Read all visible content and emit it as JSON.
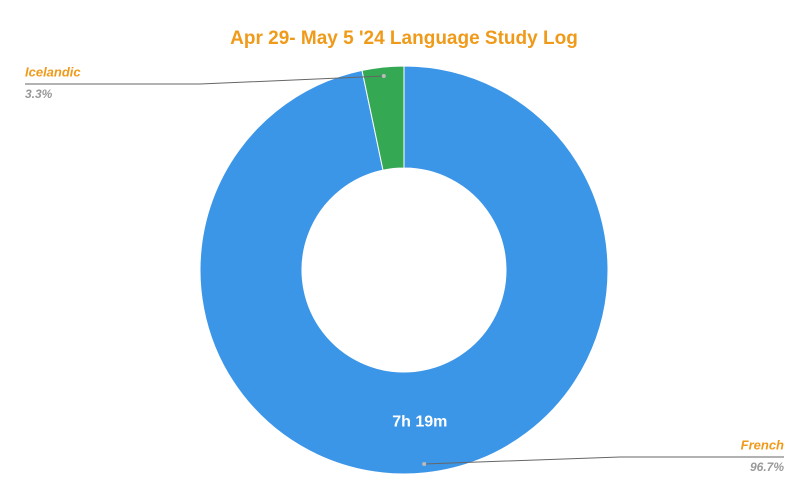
{
  "chart_data": {
    "type": "donut",
    "title": "Apr 29- May 5 '24 Language Study Log",
    "categories": [
      "French",
      "Icelandic"
    ],
    "values": [
      96.7,
      3.3
    ],
    "value_labels": [
      "96.7%",
      "3.3%"
    ],
    "slice_labels": [
      "7h 19m",
      null
    ],
    "colors": [
      "#3c96e8",
      "#34a853"
    ]
  }
}
